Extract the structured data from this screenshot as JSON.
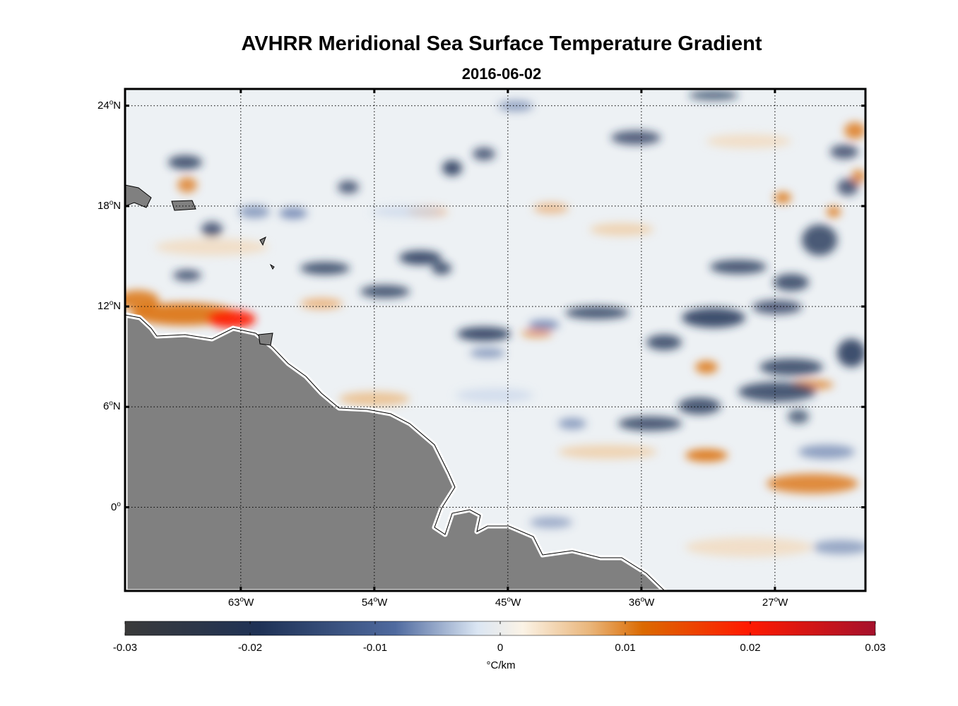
{
  "title": "AVHRR Meridional Sea Surface Temperature Gradient",
  "subtitle": "2016-06-02",
  "map": {
    "lon_range": [
      -70.8,
      -20.9
    ],
    "lat_range": [
      -5.0,
      25.0
    ],
    "lat_ticks": [
      {
        "value": 24,
        "label": "24",
        "hemi": "N"
      },
      {
        "value": 18,
        "label": "18",
        "hemi": "N"
      },
      {
        "value": 12,
        "label": "12",
        "hemi": "N"
      },
      {
        "value": 6,
        "label": "6",
        "hemi": "N"
      },
      {
        "value": 0,
        "label": "0",
        "hemi": ""
      }
    ],
    "lon_ticks": [
      {
        "value": -63,
        "label": "63",
        "hemi": "W"
      },
      {
        "value": -54,
        "label": "54",
        "hemi": "W"
      },
      {
        "value": -45,
        "label": "45",
        "hemi": "W"
      },
      {
        "value": -36,
        "label": "36",
        "hemi": "W"
      },
      {
        "value": -27,
        "label": "27",
        "hemi": "W"
      }
    ],
    "land_color": "#808080",
    "grid": "dotted"
  },
  "colorbar": {
    "min": -0.03,
    "max": 0.03,
    "ticks": [
      "-0.03",
      "-0.02",
      "-0.01",
      "0",
      "0.01",
      "0.02",
      "0.03"
    ],
    "unit": "°C/km",
    "colors": [
      "#3a3a3a",
      "#1f3256",
      "#4f6a9f",
      "#dbe6f3",
      "#fbf3e6",
      "#e9b57a",
      "#db6a00",
      "#ff1a00",
      "#a5112c"
    ]
  }
}
